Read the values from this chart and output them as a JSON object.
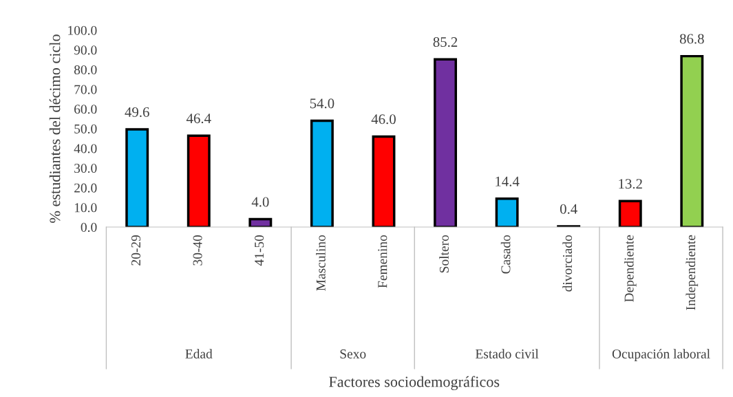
{
  "chart_data": {
    "type": "bar",
    "xlabel": "Factores sociodemográficos",
    "ylabel": "% estudiantes del décimo ciclo",
    "categories": [
      "20-29",
      "30-40",
      "41-50",
      "Masculino",
      "Femenino",
      "Soltero",
      "Casado",
      "divorciado",
      "Dependiente",
      "Independiente"
    ],
    "values": [
      49.6,
      46.4,
      4.0,
      54.0,
      46.0,
      85.2,
      14.4,
      0.4,
      13.2,
      86.8
    ],
    "colors": [
      "#00b0f0",
      "#ff0000",
      "#7030a0",
      "#00b0f0",
      "#ff0000",
      "#7030a0",
      "#00b0f0",
      "#ffffff",
      "#ff0000",
      "#92d050"
    ],
    "value_labels": [
      "49.6",
      "46.4",
      "4.0",
      "54.0",
      "46.0",
      "85.2",
      "14.4",
      "0.4",
      "13.2",
      "86.8"
    ],
    "ylim": [
      0,
      100
    ],
    "yticks": [
      {
        "value": 0,
        "label": "0.0"
      },
      {
        "value": 10,
        "label": "10.0"
      },
      {
        "value": 20,
        "label": "20.0"
      },
      {
        "value": 30,
        "label": "30.0"
      },
      {
        "value": 40,
        "label": "40.0"
      },
      {
        "value": 50,
        "label": "50.0"
      },
      {
        "value": 60,
        "label": "60.0"
      },
      {
        "value": 70,
        "label": "70.0"
      },
      {
        "value": 80,
        "label": "80.0"
      },
      {
        "value": 90,
        "label": "90.0"
      },
      {
        "value": 100,
        "label": "100.0"
      }
    ],
    "annotations": [
      "Edad",
      "Sexo",
      "Estado civil",
      "Ocupación laboral"
    ],
    "grid": false
  }
}
